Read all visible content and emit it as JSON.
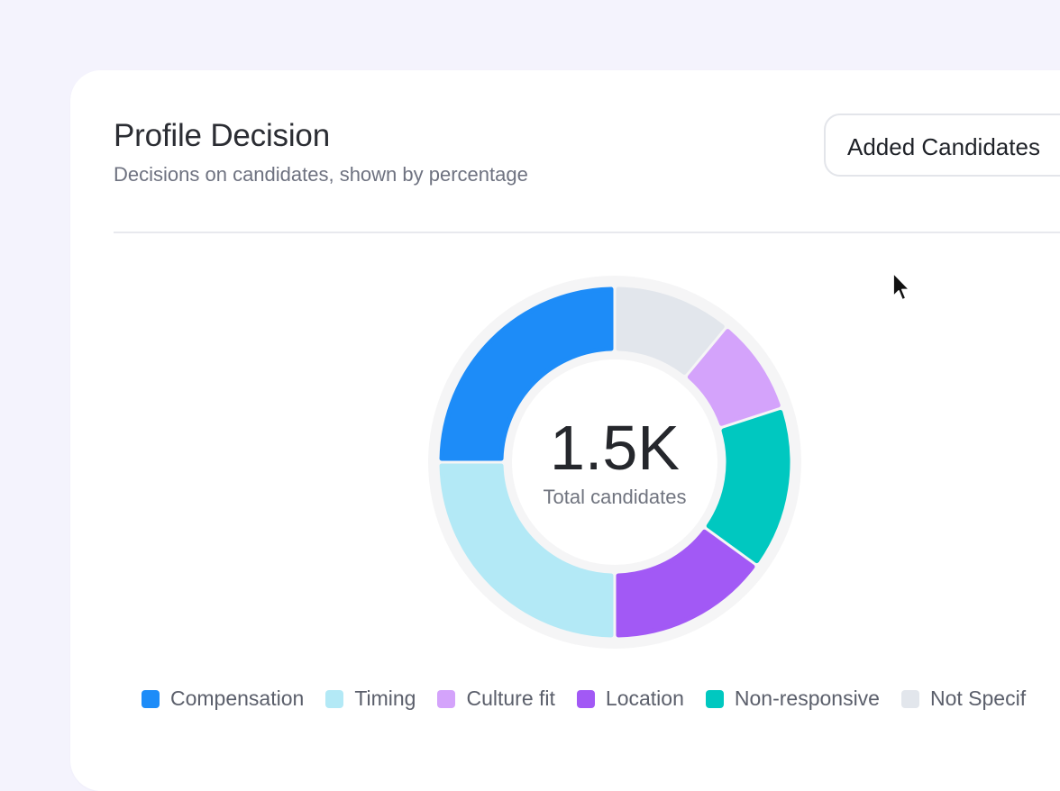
{
  "card": {
    "title": "Profile Decision",
    "subtitle": "Decisions on candidates, shown by percentage"
  },
  "dropdown": {
    "selected": "Added Candidates"
  },
  "chart_data": {
    "type": "pie",
    "variant": "donut",
    "title": "Profile Decision",
    "center_value": "1.5K",
    "center_label": "Total candidates",
    "categories": [
      "Compensation",
      "Timing",
      "Culture fit",
      "Location",
      "Non-responsive",
      "Not Specified"
    ],
    "values": [
      25,
      25,
      9,
      15,
      15,
      11
    ],
    "series_order_clockwise_from_top": [
      "Not Specified",
      "Culture fit",
      "Non-responsive",
      "Location",
      "Timing",
      "Compensation"
    ],
    "colors": {
      "Compensation": "#1d8cf8",
      "Timing": "#b3e9f6",
      "Culture fit": "#d4a3fb",
      "Location": "#a259f5",
      "Non-responsive": "#00c8c0",
      "Not Specified": "#e2e6ec"
    },
    "legend": [
      "Compensation",
      "Timing",
      "Culture fit",
      "Location",
      "Non-responsive",
      "Not Specif"
    ],
    "legend_position": "bottom"
  }
}
